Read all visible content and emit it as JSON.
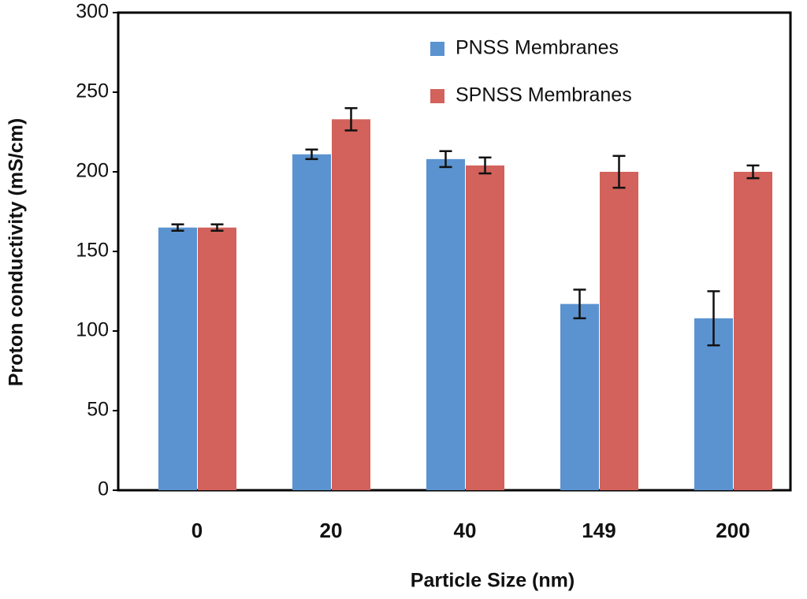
{
  "chart_data": {
    "type": "bar",
    "x_label": "Particle Size (nm)",
    "y_label": "Proton conductivity (mS/cm)",
    "categories": [
      "0",
      "20",
      "40",
      "149",
      "200"
    ],
    "series": [
      {
        "name": "PNSS Membranes",
        "color": "#5b93d0",
        "values": [
          165,
          211,
          208,
          117,
          108
        ],
        "errors": [
          2,
          3,
          5,
          9,
          17
        ]
      },
      {
        "name": "SPNSS Membranes",
        "color": "#d2625b",
        "values": [
          165,
          233,
          204,
          200,
          200
        ],
        "errors": [
          2,
          7,
          5,
          10,
          4
        ]
      }
    ],
    "ylim": [
      0,
      300
    ],
    "yticks": [
      0,
      50,
      100,
      150,
      200,
      250,
      300
    ],
    "legend": "top-right"
  }
}
